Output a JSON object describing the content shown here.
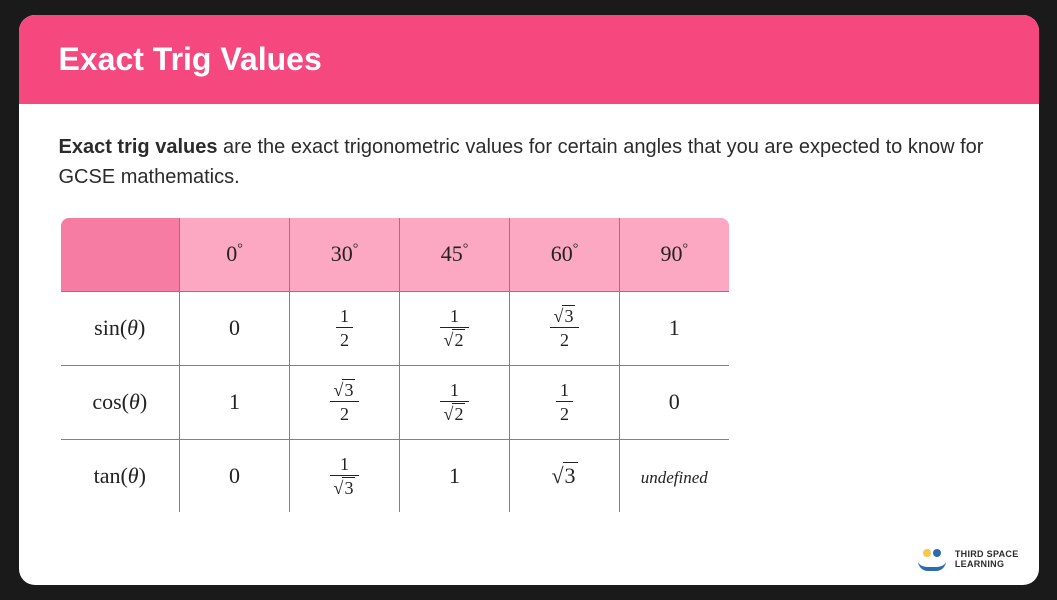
{
  "header": {
    "title": "Exact Trig Values"
  },
  "intro": {
    "bold": "Exact trig values",
    "rest": " are the exact trigonometric values for certain angles that you are expected to know for GCSE mathematics."
  },
  "table": {
    "type": "table",
    "border_color": "#f5487f",
    "header_bg": "#fca8c2",
    "corner_bg": "#f77ca4",
    "cell_bg": "#ffffff",
    "text_color": "#222222",
    "font_family": "Georgia, serif",
    "cell_fontsize": 22,
    "angles": [
      "0°",
      "30°",
      "45°",
      "60°",
      "90°"
    ],
    "rows": [
      {
        "label": "sin(θ)",
        "cells": [
          "0",
          "1/2",
          "1/√2",
          "√3/2",
          "1"
        ]
      },
      {
        "label": "cos(θ)",
        "cells": [
          "1",
          "√3/2",
          "1/√2",
          "1/2",
          "0"
        ]
      },
      {
        "label": "tan(θ)",
        "cells": [
          "0",
          "1/√3",
          "1",
          "√3",
          "undefined"
        ]
      }
    ]
  },
  "brand": {
    "line1": "THIRD SPACE",
    "line2": "LEARNING"
  },
  "colors": {
    "card_bg": "#ffffff",
    "page_bg": "#1a1a1a",
    "header_bg": "#f5487f",
    "header_text": "#ffffff",
    "body_text": "#2b2b2b"
  }
}
